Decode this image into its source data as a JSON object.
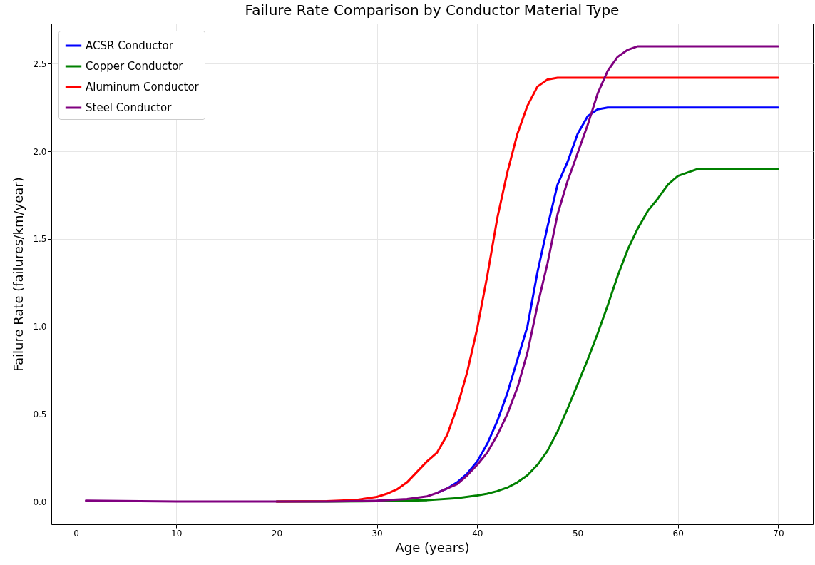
{
  "chart_data": {
    "type": "line",
    "title": "Failure Rate Comparison by Conductor Material Type",
    "xlabel": "Age (years)",
    "ylabel": "Failure Rate (failures/km/year)",
    "series": [
      {
        "name": "ACSR Conductor",
        "color": "#0000ff",
        "x": [
          36,
          37,
          38,
          39,
          40,
          41,
          42,
          43,
          44,
          45,
          46,
          47,
          48,
          49,
          50,
          51,
          52,
          53,
          60,
          70
        ],
        "values": [
          0.05,
          0.075,
          0.11,
          0.16,
          0.23,
          0.33,
          0.46,
          0.62,
          0.81,
          1.0,
          1.31,
          1.57,
          1.81,
          1.94,
          2.1,
          2.2,
          2.24,
          2.25,
          2.25,
          2.25
        ]
      },
      {
        "name": "Copper Conductor",
        "color": "#008000",
        "x": [
          20,
          25,
          30,
          35,
          38,
          40,
          41,
          42,
          43,
          44,
          45,
          46,
          47,
          48,
          49,
          50,
          51,
          52,
          53,
          54,
          55,
          56,
          57,
          58,
          59,
          60,
          61,
          62,
          63,
          70
        ],
        "values": [
          0,
          0,
          0.002,
          0.008,
          0.02,
          0.035,
          0.045,
          0.06,
          0.08,
          0.11,
          0.15,
          0.21,
          0.29,
          0.4,
          0.53,
          0.67,
          0.81,
          0.96,
          1.12,
          1.29,
          1.44,
          1.56,
          1.66,
          1.73,
          1.81,
          1.86,
          1.88,
          1.9,
          1.9,
          1.9
        ]
      },
      {
        "name": "Aluminum Conductor",
        "color": "#ff0000",
        "x": [
          20,
          25,
          28,
          30,
          31,
          32,
          33,
          34,
          35,
          36,
          37,
          38,
          39,
          40,
          41,
          42,
          43,
          44,
          45,
          46,
          47,
          48,
          50,
          60,
          70
        ],
        "values": [
          0,
          0.002,
          0.01,
          0.027,
          0.045,
          0.07,
          0.11,
          0.17,
          0.23,
          0.28,
          0.38,
          0.54,
          0.74,
          0.99,
          1.29,
          1.62,
          1.88,
          2.1,
          2.26,
          2.37,
          2.41,
          2.42,
          2.42,
          2.42,
          2.42
        ]
      },
      {
        "name": "Steel Conductor",
        "color": "#800080",
        "x": [
          1,
          10,
          20,
          25,
          30,
          33,
          35,
          36,
          37,
          38,
          39,
          40,
          41,
          42,
          43,
          44,
          45,
          46,
          47,
          48,
          49,
          50,
          51,
          52,
          53,
          54,
          55,
          56,
          60,
          70
        ],
        "values": [
          0.005,
          0,
          0,
          0,
          0.005,
          0.015,
          0.03,
          0.05,
          0.075,
          0.1,
          0.15,
          0.21,
          0.28,
          0.38,
          0.5,
          0.65,
          0.85,
          1.12,
          1.36,
          1.64,
          1.83,
          1.99,
          2.15,
          2.33,
          2.46,
          2.54,
          2.58,
          2.6,
          2.6,
          2.6
        ]
      }
    ],
    "xlim": [
      -2.45,
      73.45
    ],
    "ylim": [
      -0.13,
      2.73
    ],
    "xticks": [
      0,
      10,
      20,
      30,
      40,
      50,
      60,
      70
    ],
    "yticks": [
      {
        "value": 0,
        "label": "0.0"
      },
      {
        "value": 0.5,
        "label": "0.5"
      },
      {
        "value": 1,
        "label": "1.0"
      },
      {
        "value": 1.5,
        "label": "1.5"
      },
      {
        "value": 2,
        "label": "2.0"
      },
      {
        "value": 2.5,
        "label": "2.5"
      }
    ],
    "grid": true,
    "legend": "top left",
    "marker": "none",
    "line_style": "solid"
  }
}
